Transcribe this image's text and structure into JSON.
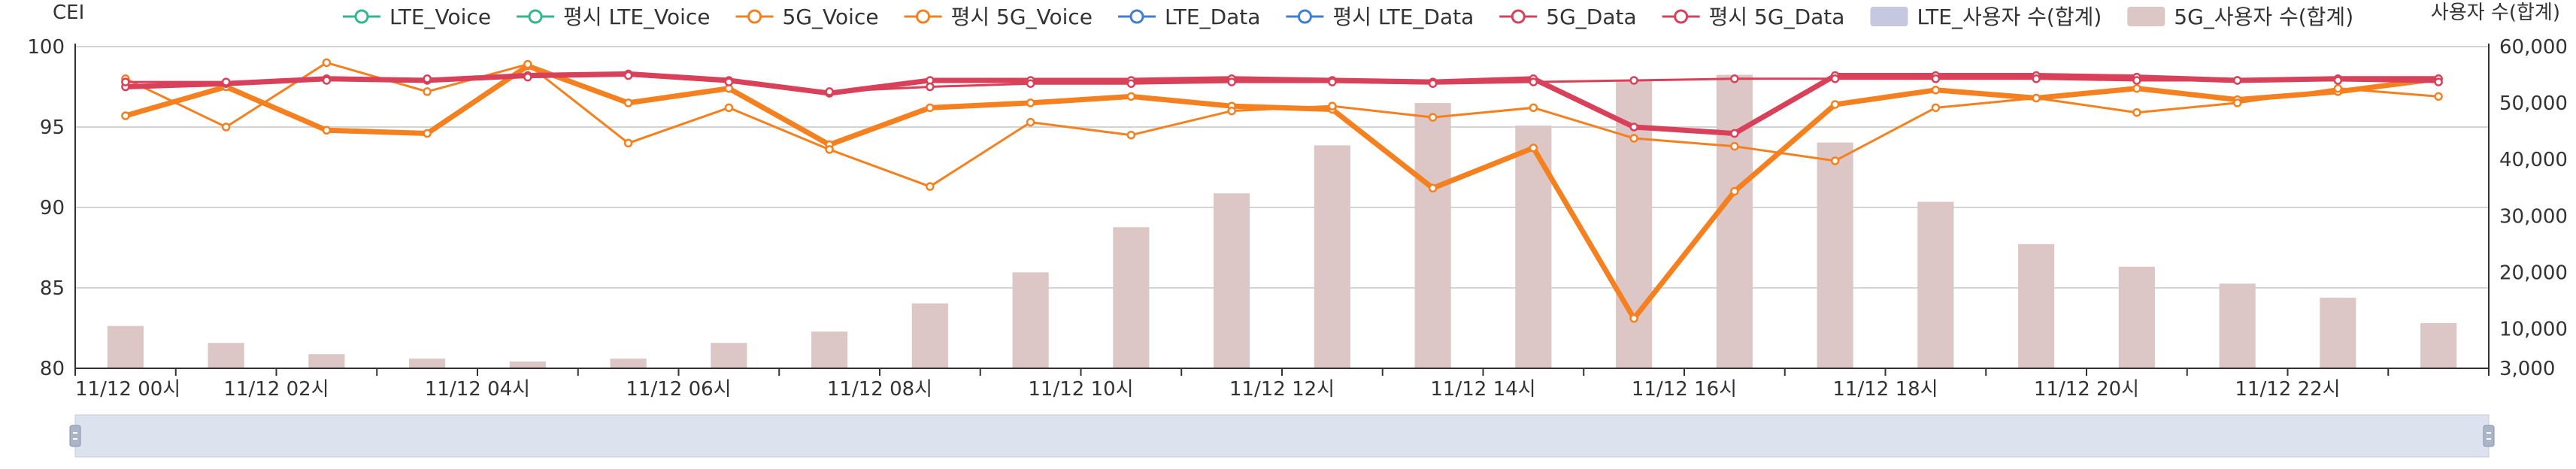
{
  "chart_data": {
    "type": "line+bar",
    "y_left_title": "CEI",
    "y_right_title": "사용자 수(합계)",
    "y_left_ticks": [
      "80",
      "85",
      "90",
      "95",
      "100"
    ],
    "y_right_ticks": [
      "3,000",
      "10,000",
      "20,000",
      "30,000",
      "40,000",
      "50,000",
      "60,000"
    ],
    "y_left_range": [
      80,
      100
    ],
    "y_right_range": [
      3000,
      60000
    ],
    "x_tick_labels": [
      "11/12 00시",
      "11/12 02시",
      "11/12 04시",
      "11/12 06시",
      "11/12 08시",
      "11/12 10시",
      "11/12 12시",
      "11/12 14시",
      "11/12 16시",
      "11/12 18시",
      "11/12 20시",
      "11/12 22시"
    ],
    "hours": [
      0,
      1,
      2,
      3,
      4,
      5,
      6,
      7,
      8,
      9,
      10,
      11,
      12,
      13,
      14,
      15,
      16,
      17,
      18,
      19,
      20,
      21,
      22,
      23
    ],
    "legend_position": "top",
    "grid": "horizontal",
    "legend": [
      {
        "name": "LTE_Voice",
        "kind": "line",
        "color": "#2fb98c"
      },
      {
        "name": "평시 LTE_Voice",
        "kind": "line",
        "color": "#2fb98c"
      },
      {
        "name": "5G_Voice",
        "kind": "line",
        "color": "#f5801f"
      },
      {
        "name": "평시 5G_Voice",
        "kind": "line",
        "color": "#f5801f"
      },
      {
        "name": "LTE_Data",
        "kind": "line",
        "color": "#3d7fd6"
      },
      {
        "name": "평시 LTE_Data",
        "kind": "line",
        "color": "#3d7fd6"
      },
      {
        "name": "5G_Data",
        "kind": "line",
        "color": "#d9405a"
      },
      {
        "name": "평시 5G_Data",
        "kind": "line",
        "color": "#d9405a"
      },
      {
        "name": "LTE_사용자 수(합계)",
        "kind": "bar",
        "color": "#c6c8e2"
      },
      {
        "name": "5G_사용자 수(합계)",
        "kind": "bar",
        "color": "#dcc6c6"
      }
    ],
    "series": [
      {
        "name": "5G_Voice",
        "axis": "left",
        "kind": "line",
        "color": "#f5801f",
        "width": "thick",
        "values": [
          95.7,
          97.5,
          94.8,
          94.6,
          98.8,
          96.5,
          97.4,
          93.9,
          96.2,
          96.5,
          96.9,
          96.3,
          96.1,
          91.2,
          93.7,
          83.1,
          91.0,
          96.4,
          97.3,
          96.8,
          97.4,
          96.7,
          97.2,
          98.0
        ]
      },
      {
        "name": "평시 5G_Voice",
        "axis": "left",
        "kind": "line",
        "color": "#f5801f",
        "width": "thin",
        "values": [
          98.0,
          95.0,
          99.0,
          97.2,
          98.9,
          94.0,
          96.2,
          93.6,
          91.3,
          95.3,
          94.5,
          96.0,
          96.3,
          95.6,
          96.2,
          94.3,
          93.8,
          92.9,
          96.2,
          96.8,
          95.9,
          96.5,
          97.4,
          96.9
        ]
      },
      {
        "name": "5G_Data",
        "axis": "left",
        "kind": "line",
        "color": "#d9405a",
        "width": "thick",
        "values": [
          97.5,
          97.7,
          98.0,
          97.9,
          98.2,
          98.3,
          97.9,
          97.1,
          97.9,
          97.9,
          97.9,
          98.0,
          97.9,
          97.8,
          98.0,
          95.0,
          94.6,
          98.2,
          98.2,
          98.2,
          98.1,
          97.9,
          98.0,
          98.0
        ]
      },
      {
        "name": "평시 5G_Data",
        "axis": "left",
        "kind": "line",
        "color": "#d9405a",
        "width": "thin",
        "values": [
          97.8,
          97.8,
          97.9,
          98.0,
          98.1,
          98.2,
          97.8,
          97.2,
          97.5,
          97.7,
          97.7,
          97.8,
          97.8,
          97.7,
          97.8,
          97.9,
          98.0,
          98.0,
          98.0,
          98.0,
          97.9,
          97.9,
          97.9,
          97.8
        ]
      },
      {
        "name": "5G_사용자 수(합계)",
        "axis": "right",
        "kind": "bar",
        "color": "#dcc6c6",
        "values": [
          10500,
          7500,
          5500,
          4700,
          4200,
          4700,
          7500,
          9500,
          14500,
          20000,
          28000,
          34000,
          42500,
          50000,
          46000,
          54000,
          55000,
          43000,
          32500,
          25000,
          21000,
          18000,
          15500,
          11000
        ]
      }
    ]
  },
  "data_zoom": {
    "start": 0,
    "end": 100
  }
}
